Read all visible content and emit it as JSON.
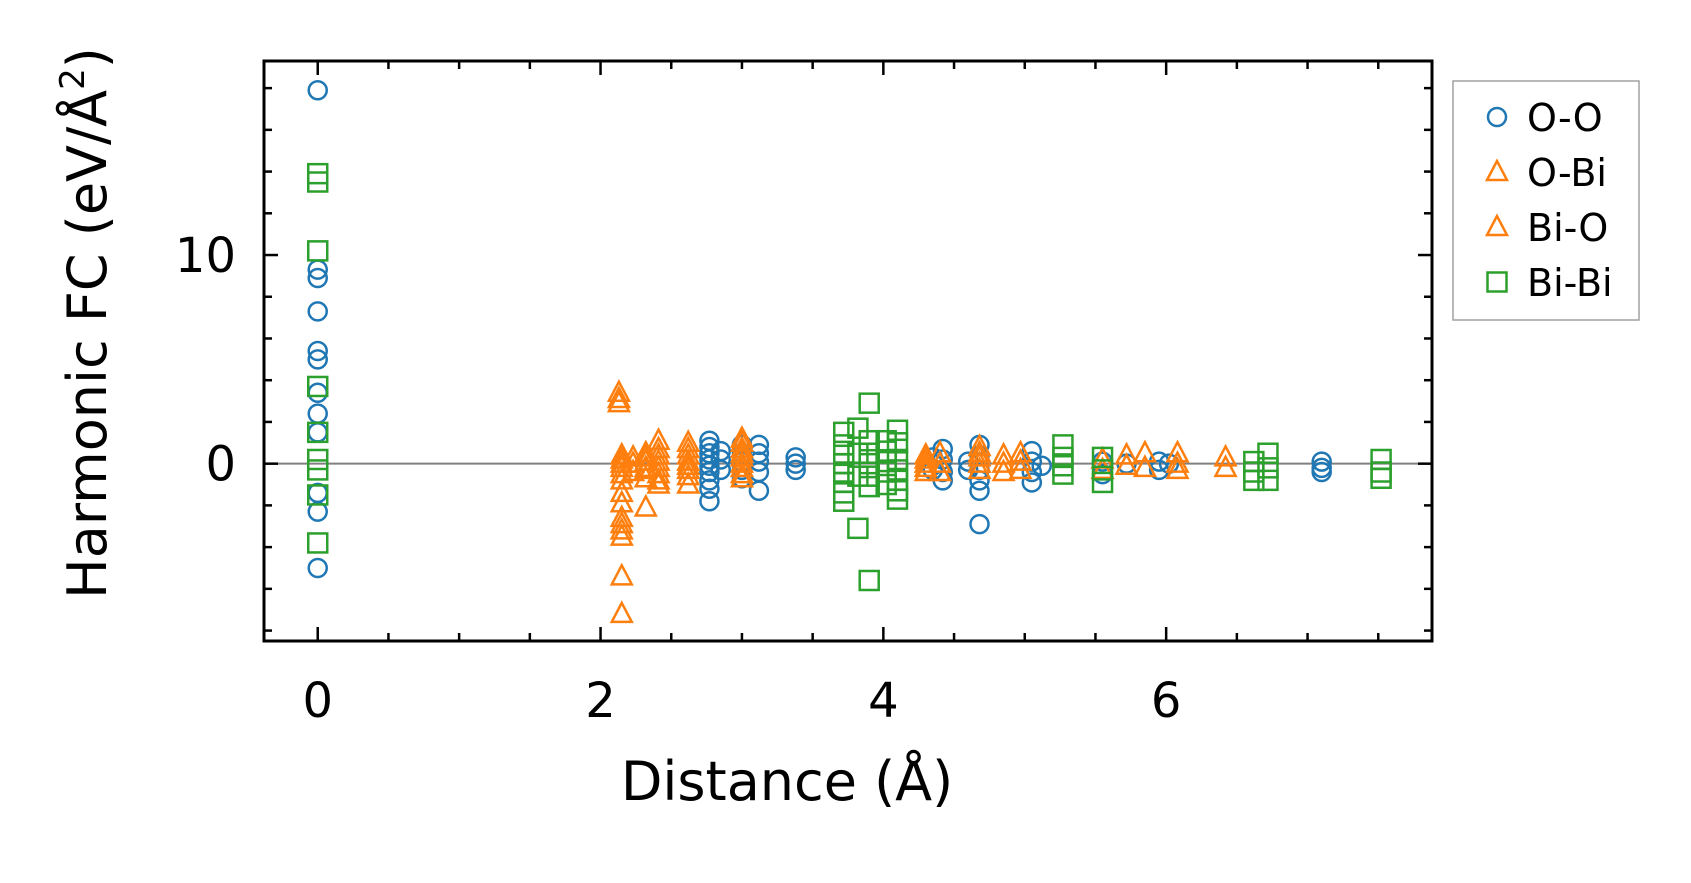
{
  "chart_data": {
    "type": "scatter",
    "xlabel": "Distance (Å)",
    "ylabel": "Harmonic FC (eV/Å²)",
    "ylabel_main": "Harmonic FC (eV/Å",
    "ylabel_sup": "2",
    "ylabel_close": ")",
    "xlim": [
      -0.38,
      7.88
    ],
    "ylim": [
      -8.5,
      19.3
    ],
    "xticks": [
      0,
      2,
      4,
      6
    ],
    "xtick_labels": [
      "0",
      "2",
      "4",
      "6"
    ],
    "yticks": [
      0,
      10
    ],
    "ytick_labels": [
      "0",
      "10"
    ],
    "grid": false,
    "zero_line": true,
    "legend_position": "outside-right-top",
    "series": [
      {
        "name": "O-O",
        "marker": "circle",
        "color": "#1f77b4",
        "points": [
          [
            0,
            17.9
          ],
          [
            0,
            9.3
          ],
          [
            0,
            8.9
          ],
          [
            0,
            7.3
          ],
          [
            0,
            5.4
          ],
          [
            0,
            5.0
          ],
          [
            0,
            3.4
          ],
          [
            0,
            2.4
          ],
          [
            0,
            1.5
          ],
          [
            0,
            -1.4
          ],
          [
            0,
            -2.3
          ],
          [
            0,
            -5.0
          ],
          [
            2.77,
            1.1
          ],
          [
            2.77,
            0.8
          ],
          [
            2.77,
            0.5
          ],
          [
            2.77,
            0.2
          ],
          [
            2.77,
            -0.1
          ],
          [
            2.77,
            -0.4
          ],
          [
            2.77,
            -0.8
          ],
          [
            2.77,
            -1.2
          ],
          [
            2.77,
            -1.8
          ],
          [
            2.85,
            0.6
          ],
          [
            2.85,
            0.2
          ],
          [
            2.85,
            -0.3
          ],
          [
            3.0,
            0.9
          ],
          [
            3.0,
            0.5
          ],
          [
            3.0,
            0.1
          ],
          [
            3.0,
            -0.3
          ],
          [
            3.0,
            -0.7
          ],
          [
            3.12,
            0.9
          ],
          [
            3.12,
            0.5
          ],
          [
            3.12,
            0.1
          ],
          [
            3.12,
            -0.4
          ],
          [
            3.12,
            -1.3
          ],
          [
            3.38,
            0.3
          ],
          [
            3.38,
            0.0
          ],
          [
            3.38,
            -0.3
          ],
          [
            4.35,
            0.3
          ],
          [
            4.35,
            -0.3
          ],
          [
            4.42,
            0.7
          ],
          [
            4.42,
            0.2
          ],
          [
            4.42,
            -0.4
          ],
          [
            4.42,
            -0.8
          ],
          [
            4.6,
            0.1
          ],
          [
            4.6,
            -0.3
          ],
          [
            4.68,
            0.9
          ],
          [
            4.68,
            0.4
          ],
          [
            4.68,
            -0.3
          ],
          [
            4.68,
            -0.8
          ],
          [
            4.68,
            -1.3
          ],
          [
            4.68,
            -2.9
          ],
          [
            5.05,
            0.6
          ],
          [
            5.05,
            0.1
          ],
          [
            5.05,
            -0.4
          ],
          [
            5.05,
            -0.9
          ],
          [
            5.12,
            -0.1
          ],
          [
            5.55,
            0.1
          ],
          [
            5.55,
            -0.5
          ],
          [
            5.72,
            0.0
          ],
          [
            5.95,
            0.1
          ],
          [
            5.95,
            -0.3
          ],
          [
            6.02,
            0.0
          ],
          [
            7.1,
            0.1
          ],
          [
            7.1,
            -0.2
          ],
          [
            7.1,
            -0.4
          ]
        ]
      },
      {
        "name": "O-Bi",
        "marker": "triangle",
        "color": "#ff7f0e",
        "points": [
          [
            2.13,
            3.4
          ],
          [
            2.13,
            2.9
          ],
          [
            2.15,
            0.4
          ],
          [
            2.15,
            0.0
          ],
          [
            2.15,
            -0.5
          ],
          [
            2.15,
            -1.4
          ],
          [
            2.15,
            -2.6
          ],
          [
            2.15,
            -3.2
          ],
          [
            2.15,
            -3.5
          ],
          [
            2.15,
            -5.4
          ],
          [
            2.15,
            -7.2
          ],
          [
            2.23,
            0.3
          ],
          [
            2.23,
            -0.4
          ],
          [
            2.32,
            0.5
          ],
          [
            2.32,
            0.1
          ],
          [
            2.32,
            -0.3
          ],
          [
            2.32,
            -0.7
          ],
          [
            2.32,
            -2.1
          ],
          [
            2.41,
            1.1
          ],
          [
            2.41,
            0.4
          ],
          [
            2.41,
            -0.2
          ],
          [
            2.41,
            -0.5
          ],
          [
            2.41,
            -1.0
          ],
          [
            2.62,
            1.0
          ],
          [
            2.62,
            0.4
          ],
          [
            2.62,
            -0.1
          ],
          [
            2.62,
            -0.6
          ],
          [
            2.62,
            -1.0
          ],
          [
            3.0,
            1.2
          ],
          [
            3.0,
            0.7
          ],
          [
            3.0,
            0.3
          ],
          [
            3.0,
            -0.2
          ],
          [
            3.0,
            -0.7
          ],
          [
            4.3,
            0.4
          ],
          [
            4.3,
            0.0
          ],
          [
            4.3,
            -0.4
          ],
          [
            4.68,
            0.8
          ],
          [
            4.68,
            0.3
          ],
          [
            4.68,
            -0.3
          ],
          [
            4.85,
            0.4
          ],
          [
            4.85,
            0.0
          ],
          [
            4.85,
            -0.4
          ],
          [
            5.55,
            0.2
          ],
          [
            5.55,
            -0.3
          ],
          [
            5.85,
            0.5
          ],
          [
            5.85,
            -0.2
          ],
          [
            6.42,
            0.3
          ],
          [
            6.42,
            -0.2
          ]
        ]
      },
      {
        "name": "Bi-O",
        "marker": "triangle",
        "color": "#ff7f0e",
        "points": [
          [
            2.13,
            3.1
          ],
          [
            2.15,
            0.2
          ],
          [
            2.15,
            -0.2
          ],
          [
            2.15,
            -0.8
          ],
          [
            2.15,
            -1.9
          ],
          [
            2.15,
            -2.9
          ],
          [
            2.23,
            0.0
          ],
          [
            2.32,
            0.3
          ],
          [
            2.32,
            -0.2
          ],
          [
            2.41,
            0.7
          ],
          [
            2.41,
            0.1
          ],
          [
            2.41,
            -0.8
          ],
          [
            2.62,
            0.7
          ],
          [
            2.62,
            0.1
          ],
          [
            2.62,
            -0.3
          ],
          [
            3.0,
            1.0
          ],
          [
            3.0,
            0.5
          ],
          [
            3.0,
            0.0
          ],
          [
            3.0,
            -0.5
          ],
          [
            4.3,
            0.2
          ],
          [
            4.3,
            -0.2
          ],
          [
            4.4,
            0.5
          ],
          [
            4.4,
            0.0
          ],
          [
            4.4,
            -0.4
          ],
          [
            4.68,
            0.5
          ],
          [
            4.68,
            0.0
          ],
          [
            4.97,
            0.5
          ],
          [
            4.97,
            0.1
          ],
          [
            4.97,
            -0.3
          ],
          [
            5.72,
            0.4
          ],
          [
            5.72,
            -0.1
          ],
          [
            6.08,
            0.5
          ],
          [
            6.08,
            0.0
          ],
          [
            6.08,
            -0.3
          ]
        ]
      },
      {
        "name": "Bi-Bi",
        "marker": "square",
        "color": "#2ca02c",
        "points": [
          [
            0,
            13.9
          ],
          [
            0,
            13.5
          ],
          [
            0,
            10.2
          ],
          [
            0,
            3.7
          ],
          [
            0,
            1.5
          ],
          [
            0,
            0.2
          ],
          [
            0,
            -0.3
          ],
          [
            0,
            -1.5
          ],
          [
            0,
            -3.8
          ],
          [
            3.72,
            1.5
          ],
          [
            3.72,
            0.9
          ],
          [
            3.72,
            0.4
          ],
          [
            3.72,
            0.0
          ],
          [
            3.72,
            -0.4
          ],
          [
            3.72,
            -0.9
          ],
          [
            3.72,
            -1.4
          ],
          [
            3.72,
            -1.8
          ],
          [
            3.82,
            1.7
          ],
          [
            3.82,
            0.5
          ],
          [
            3.82,
            -0.6
          ],
          [
            3.82,
            -3.1
          ],
          [
            3.9,
            2.9
          ],
          [
            3.9,
            1.1
          ],
          [
            3.9,
            0.5
          ],
          [
            3.9,
            0.0
          ],
          [
            3.9,
            -0.6
          ],
          [
            3.9,
            -1.1
          ],
          [
            3.9,
            -5.6
          ],
          [
            4.02,
            1.1
          ],
          [
            4.02,
            0.6
          ],
          [
            4.02,
            0.1
          ],
          [
            4.02,
            -0.4
          ],
          [
            4.02,
            -1.0
          ],
          [
            4.1,
            1.6
          ],
          [
            4.1,
            1.0
          ],
          [
            4.1,
            0.2
          ],
          [
            4.1,
            -0.3
          ],
          [
            4.1,
            -0.8
          ],
          [
            4.1,
            -1.3
          ],
          [
            4.1,
            -1.7
          ],
          [
            5.27,
            0.9
          ],
          [
            5.27,
            0.3
          ],
          [
            5.27,
            -0.1
          ],
          [
            5.27,
            -0.5
          ],
          [
            5.55,
            0.3
          ],
          [
            5.55,
            -0.3
          ],
          [
            5.55,
            -0.9
          ],
          [
            6.62,
            0.1
          ],
          [
            6.62,
            -0.4
          ],
          [
            6.62,
            -0.8
          ],
          [
            6.72,
            0.5
          ],
          [
            6.72,
            -0.2
          ],
          [
            6.72,
            -0.8
          ],
          [
            7.52,
            0.2
          ],
          [
            7.52,
            -0.4
          ],
          [
            7.52,
            -0.7
          ]
        ]
      }
    ]
  }
}
